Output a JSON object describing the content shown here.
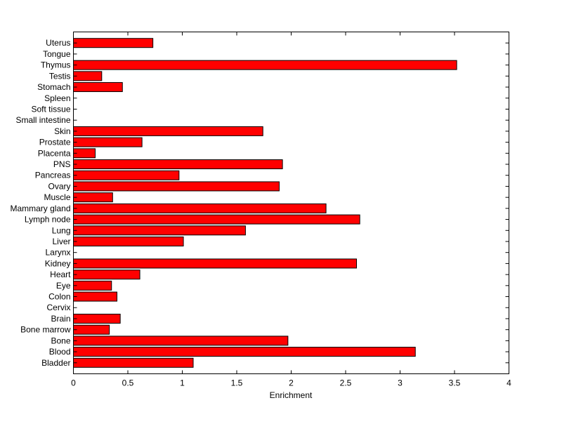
{
  "chart_data": {
    "type": "bar",
    "orientation": "horizontal",
    "title": "",
    "xlabel": "Enrichment",
    "ylabel": "",
    "xlim": [
      0,
      4
    ],
    "xticks": [
      0,
      0.5,
      1,
      1.5,
      2,
      2.5,
      3,
      3.5,
      4
    ],
    "xtick_labels": [
      "0",
      "0.5",
      "1",
      "1.5",
      "2",
      "2.5",
      "3",
      "3.5",
      "4"
    ],
    "grid": false,
    "bar_color": "#ff0000",
    "categories": [
      "Bladder",
      "Blood",
      "Bone",
      "Bone marrow",
      "Brain",
      "Cervix",
      "Colon",
      "Eye",
      "Heart",
      "Kidney",
      "Larynx",
      "Liver",
      "Lung",
      "Lymph node",
      "Mammary gland",
      "Muscle",
      "Ovary",
      "Pancreas",
      "PNS",
      "Placenta",
      "Prostate",
      "Skin",
      "Small intestine",
      "Soft tissue",
      "Spleen",
      "Stomach",
      "Testis",
      "Thymus",
      "Tongue",
      "Uterus"
    ],
    "values": [
      1.1,
      3.14,
      1.97,
      0.33,
      0.43,
      0,
      0.4,
      0.35,
      0.61,
      2.6,
      0,
      1.01,
      1.58,
      2.63,
      2.32,
      0.36,
      1.89,
      0.97,
      1.92,
      0.2,
      0.63,
      1.74,
      0,
      0,
      0,
      0.45,
      0.26,
      3.52,
      0,
      0.73
    ]
  }
}
